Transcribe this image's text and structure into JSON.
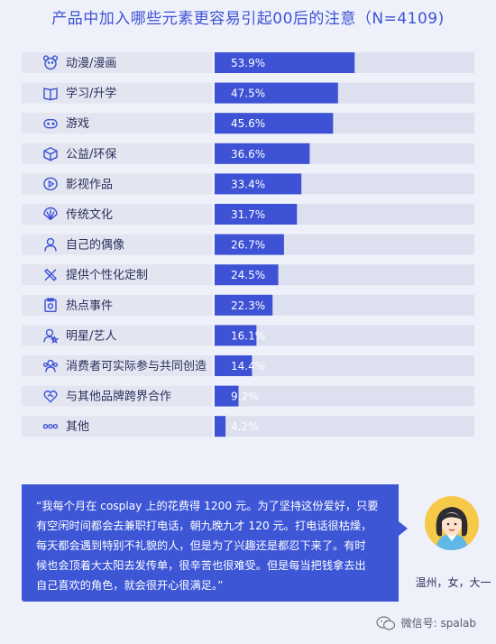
{
  "title": "产品中加入哪些元素更容易引起00后的注意（N=4109)",
  "chart_data": {
    "type": "bar",
    "orientation": "horizontal",
    "categories": [
      "动漫/漫画",
      "学习/升学",
      "游戏",
      "公益/环保",
      "影视作品",
      "传统文化",
      "自己的偶像",
      "提供个性化定制",
      "热点事件",
      "明星/艺人",
      "消费者可实际参与共同创造",
      "与其他品牌跨界合作",
      "其他"
    ],
    "values": [
      53.9,
      47.5,
      45.6,
      36.6,
      33.4,
      31.7,
      26.7,
      24.5,
      22.3,
      16.1,
      14.4,
      9.2,
      4.2
    ],
    "value_labels": [
      "53.9%",
      "47.5%",
      "45.6%",
      "36.6%",
      "33.4%",
      "31.7%",
      "26.7%",
      "24.5%",
      "22.3%",
      "16.1%",
      "14.4%",
      "9.2%",
      "4.2%"
    ],
    "icons": [
      "bear-icon",
      "book-icon",
      "gamepad-icon",
      "box-icon",
      "play-icon",
      "fan-icon",
      "person-icon",
      "tools-icon",
      "clipboard-icon",
      "star-person-icon",
      "group-icon",
      "heart-handshake-icon",
      "dots-icon"
    ],
    "xlim": [
      0,
      100
    ],
    "bar_color": "#3d52d5",
    "track_color": "#dde1ef",
    "label_panel_color": "#e3e6f1"
  },
  "quote": {
    "lines": [
      "“我每个月在 cosplay 上的花费得 1200 元。为了坚持这份爱好，只要",
      "有空闲时间都会去兼职打电话，朝九晚九才 120 元。打电话很枯燥，",
      "每天都会遇到特别不礼貌的人，但是为了兴趣还是都忍下来了。有时",
      "候也会顶着大太阳去发传单，很辛苦也很难受。但是每当把钱拿去出",
      "自己喜欢的角色，就会很开心很满足。”"
    ]
  },
  "person": "温州，女，大一",
  "footer": {
    "icon": "wechat-icon",
    "text": "微信号: spalab"
  }
}
